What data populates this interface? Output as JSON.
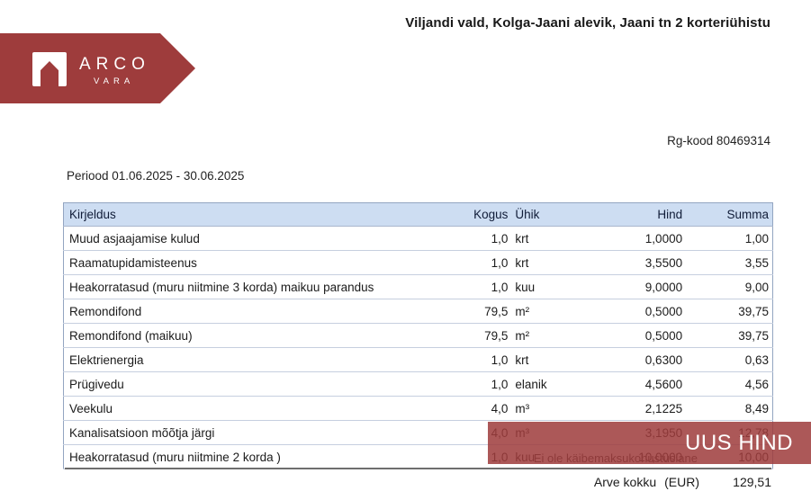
{
  "document": {
    "title": "Viljandi vald, Kolga-Jaani alevik, Jaani tn 2 korteriühistu",
    "logo": {
      "brand": "ARCO",
      "sub": "VARA"
    },
    "registry_code": "Rg-kood 80469314",
    "period": "Periood 01.06.2025 - 30.06.2025"
  },
  "table": {
    "headers": [
      "Kirjeldus",
      "Kogus",
      "Ühik",
      "Hind",
      "Summa"
    ],
    "rows": [
      [
        "Muud asjaajamise kulud",
        "1,0",
        "krt",
        "1,0000",
        "1,00"
      ],
      [
        "Raamatupidamisteenus",
        "1,0",
        "krt",
        "3,5500",
        "3,55"
      ],
      [
        "Heakorratasud (muru niitmine 3 korda) maikuu parandus",
        "1,0",
        "kuu",
        "9,0000",
        "9,00"
      ],
      [
        "Remondifond",
        "79,5",
        "m²",
        "0,5000",
        "39,75"
      ],
      [
        "Remondifond (maikuu)",
        "79,5",
        "m²",
        "0,5000",
        "39,75"
      ],
      [
        "Elektrienergia",
        "1,0",
        "krt",
        "0,6300",
        "0,63"
      ],
      [
        "Prügivedu",
        "1,0",
        "elanik",
        "4,5600",
        "4,56"
      ],
      [
        "Veekulu",
        "4,0",
        "m³",
        "2,1225",
        "8,49"
      ],
      [
        "Kanalisatsioon mõõtja järgi",
        "4,0",
        "m³",
        "3,1950",
        "12,78"
      ],
      [
        "Heakorratasud (muru niitmine 2 korda )",
        "1,0",
        "kuu",
        "10,0000",
        "10,00"
      ]
    ]
  },
  "footer": {
    "vat_note": "Ei ole käibemaksukohustuslane",
    "total_label": "Arve kokku",
    "currency": "(EUR)",
    "total_value": "129,51"
  },
  "overlay": {
    "label": "UUS HIND"
  },
  "colors": {
    "brand_red": "#9e3c3c",
    "overlay_red": "rgba(158,60,60,0.86)",
    "header_bg": "#cdddf2"
  }
}
